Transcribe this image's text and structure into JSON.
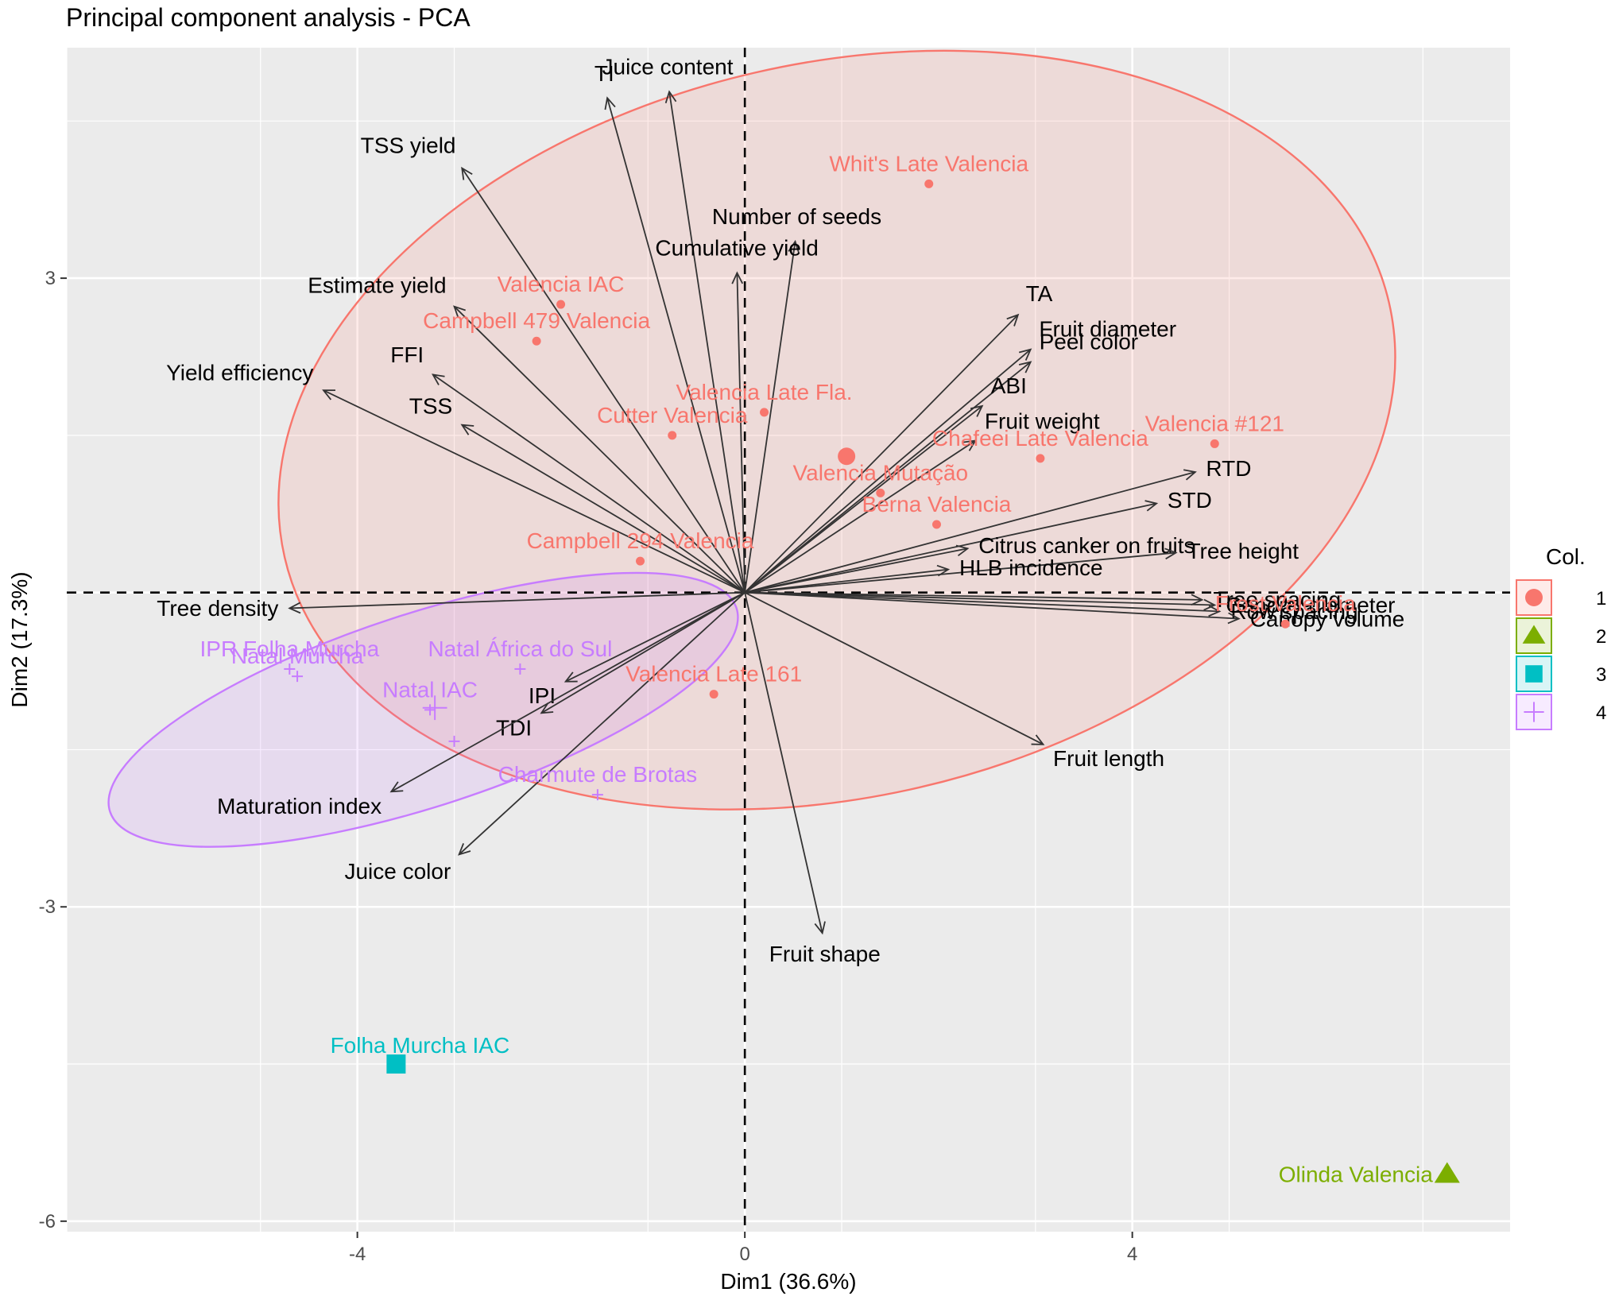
{
  "chart_data": {
    "type": "scatter",
    "title": "Principal component analysis - PCA",
    "xlabel": "Dim1 (36.6%)",
    "ylabel": "Dim2 (17.3%)",
    "xlim": [
      -7.0,
      7.9
    ],
    "ylim": [
      -6.1,
      5.2
    ],
    "xticks": [
      -4,
      0,
      4
    ],
    "yticks": [
      -6,
      -3,
      3
    ],
    "ytick_labels": [
      "-6",
      "-3",
      "3"
    ],
    "xtick_labels": [
      "-4",
      "0",
      "4"
    ],
    "grid": true,
    "reference_lines": {
      "x": 0,
      "y": 0,
      "style": "dashed"
    },
    "legend": {
      "title": "Col.",
      "position": "right",
      "entries": [
        {
          "label": "1",
          "color": "#F8766D",
          "shape": "circle"
        },
        {
          "label": "2",
          "color": "#7CAE00",
          "shape": "triangle"
        },
        {
          "label": "3",
          "color": "#00BFC4",
          "shape": "square"
        },
        {
          "label": "4",
          "color": "#C77CFF",
          "shape": "cross"
        }
      ]
    },
    "groups": [
      {
        "name": "1",
        "color": "#F8766D",
        "shape": "circle",
        "ellipse": {
          "cx": 0.95,
          "cy": 1.55,
          "rx": 5.85,
          "ry": 3.5,
          "angle_deg": -13
        },
        "centroid": [
          1.05,
          1.3
        ],
        "points": [
          {
            "label": "Whit's Late Valencia",
            "x": 1.9,
            "y": 3.9
          },
          {
            "label": "Valencia IAC",
            "x": -1.9,
            "y": 2.75
          },
          {
            "label": "Campbell 479 Valencia",
            "x": -2.15,
            "y": 2.4
          },
          {
            "label": "Valencia Late Fla.",
            "x": 0.2,
            "y": 1.72
          },
          {
            "label": "Cutter Valencia",
            "x": -0.75,
            "y": 1.5
          },
          {
            "label": "Valencia Mutação",
            "x": 1.4,
            "y": 0.95
          },
          {
            "label": "Chafeei Late Valencia",
            "x": 3.05,
            "y": 1.28
          },
          {
            "label": "Valencia #121",
            "x": 4.85,
            "y": 1.42
          },
          {
            "label": "Berna Valencia",
            "x": 1.98,
            "y": 0.65
          },
          {
            "label": "Campbell 294 Valencia",
            "x": -1.08,
            "y": 0.3
          },
          {
            "label": "Frost Valencia",
            "x": 5.58,
            "y": -0.3
          },
          {
            "label": "Valencia Late 161",
            "x": -0.32,
            "y": -0.97
          }
        ]
      },
      {
        "name": "2",
        "color": "#7CAE00",
        "shape": "triangle",
        "points": [
          {
            "label": "Olinda Valencia",
            "x": 7.25,
            "y": -5.55
          }
        ]
      },
      {
        "name": "3",
        "color": "#00BFC4",
        "shape": "square",
        "points": [
          {
            "label": "Folha Murcha IAC",
            "x": -3.6,
            "y": -4.5
          }
        ]
      },
      {
        "name": "4",
        "color": "#C77CFF",
        "shape": "cross",
        "ellipse": {
          "cx": -3.32,
          "cy": -1.12,
          "rx": 3.4,
          "ry": 0.92,
          "angle_deg": -18
        },
        "centroid": [
          -3.2,
          -1.1
        ],
        "points": [
          {
            "label": "IPR Folha Murcha",
            "x": -4.7,
            "y": -0.73
          },
          {
            "label": "Natal Murcha",
            "x": -4.62,
            "y": -0.8
          },
          {
            "label": "Natal África do Sul",
            "x": -2.32,
            "y": -0.73
          },
          {
            "label": "Natal IAC",
            "x": -3.25,
            "y": -1.12
          },
          {
            "label": "Charmute de Brotas",
            "x": -1.52,
            "y": -1.93
          },
          {
            "label": "",
            "x": -3.0,
            "y": -1.42
          }
        ]
      }
    ],
    "variables": [
      {
        "label": "Juice content",
        "x": -0.78,
        "y": 4.78
      },
      {
        "label": "TI",
        "x": -1.42,
        "y": 4.72
      },
      {
        "label": "TSS yield",
        "x": -2.92,
        "y": 4.05
      },
      {
        "label": "Number of seeds",
        "x": 0.52,
        "y": 3.35
      },
      {
        "label": "Cumulative yield",
        "x": -0.08,
        "y": 3.05
      },
      {
        "label": "Estimate yield",
        "x": -3.0,
        "y": 2.73
      },
      {
        "label": "FFI",
        "x": -3.22,
        "y": 2.08
      },
      {
        "label": "Yield efficiency",
        "x": -4.35,
        "y": 1.93
      },
      {
        "label": "TSS",
        "x": -2.92,
        "y": 1.6
      },
      {
        "label": "TA",
        "x": 2.82,
        "y": 2.65
      },
      {
        "label": "Fruit diameter",
        "x": 2.95,
        "y": 2.32
      },
      {
        "label": "Peel color",
        "x": 2.95,
        "y": 2.2
      },
      {
        "label": "ABI",
        "x": 2.45,
        "y": 1.78
      },
      {
        "label": "Fruit weight",
        "x": 2.38,
        "y": 1.45
      },
      {
        "label": "RTD",
        "x": 4.65,
        "y": 1.15
      },
      {
        "label": "STD",
        "x": 4.25,
        "y": 0.85
      },
      {
        "label": "Citrus canker on fruits",
        "x": 2.3,
        "y": 0.42
      },
      {
        "label": "Tree height",
        "x": 4.45,
        "y": 0.38
      },
      {
        "label": "HLB incidence",
        "x": 2.1,
        "y": 0.22
      },
      {
        "label": "Canopy diameter",
        "x": 4.85,
        "y": -0.12
      },
      {
        "label": "Row spacing",
        "x": 4.9,
        "y": -0.18
      },
      {
        "label": "Canopy volume",
        "x": 5.1,
        "y": -0.25
      },
      {
        "label": "Tree spacing",
        "x": 4.72,
        "y": -0.07
      },
      {
        "label": "Tree density",
        "x": -4.7,
        "y": -0.15
      },
      {
        "label": "IPI",
        "x": -1.85,
        "y": -0.85
      },
      {
        "label": "TDI",
        "x": -2.1,
        "y": -1.15
      },
      {
        "label": "Maturation index",
        "x": -3.65,
        "y": -1.9
      },
      {
        "label": "Juice color",
        "x": -2.95,
        "y": -2.5
      },
      {
        "label": "Fruit length",
        "x": 3.08,
        "y": -1.45
      },
      {
        "label": "Fruit shape",
        "x": 0.8,
        "y": -3.25
      }
    ]
  }
}
